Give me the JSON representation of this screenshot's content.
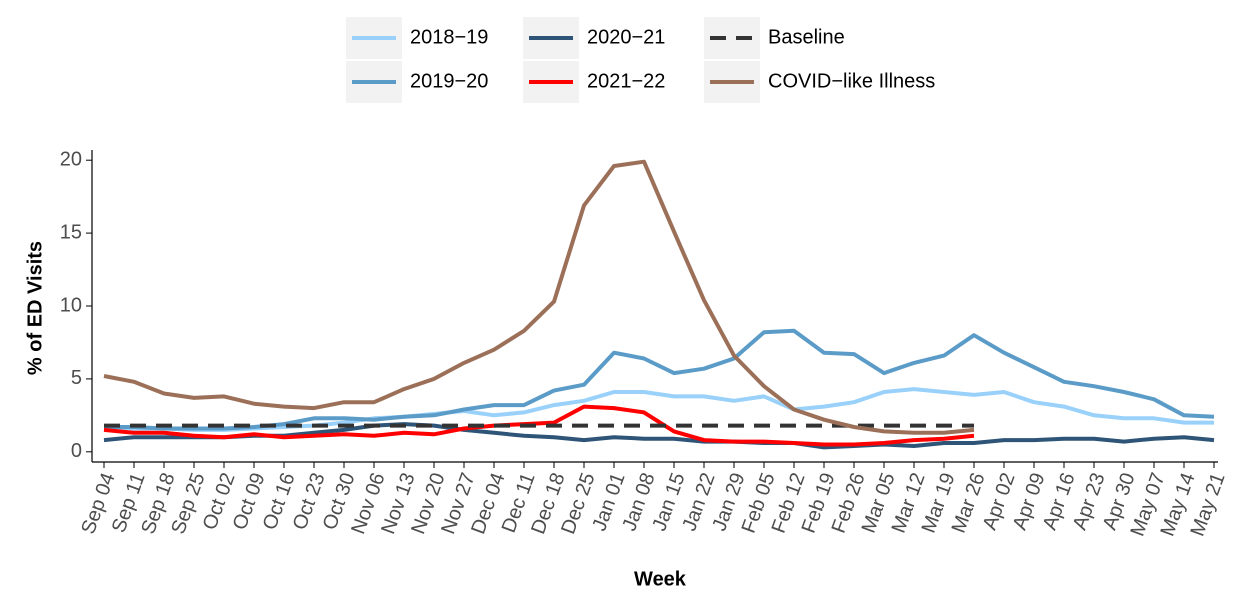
{
  "chart_data": {
    "type": "line",
    "x_label": "Week",
    "y_label": "% of ED Visits",
    "categories": [
      "Sep 04",
      "Sep 11",
      "Sep 18",
      "Sep 25",
      "Oct 02",
      "Oct 09",
      "Oct 16",
      "Oct 23",
      "Oct 30",
      "Nov 06",
      "Nov 13",
      "Nov 20",
      "Nov 27",
      "Dec 04",
      "Dec 11",
      "Dec 18",
      "Dec 25",
      "Jan 01",
      "Jan 08",
      "Jan 15",
      "Jan 22",
      "Jan 29",
      "Feb 05",
      "Feb 12",
      "Feb 19",
      "Feb 26",
      "Mar 05",
      "Mar 12",
      "Mar 19",
      "Mar 26",
      "Apr 02",
      "Apr 09",
      "Apr 16",
      "Apr 23",
      "Apr 30",
      "May 07",
      "May 14",
      "May 21"
    ],
    "ylim": [
      -0.7,
      20.7
    ],
    "yticks": [
      0,
      5,
      10,
      15,
      20
    ],
    "series": [
      {
        "name": "2018−19",
        "color": "#99d1fa",
        "values": [
          1.7,
          1.6,
          1.6,
          1.5,
          1.5,
          1.6,
          1.7,
          1.8,
          2.0,
          2.3,
          2.4,
          2.6,
          2.8,
          2.5,
          2.7,
          3.2,
          3.5,
          4.1,
          4.1,
          3.8,
          3.8,
          3.5,
          3.8,
          2.9,
          3.1,
          3.4,
          4.1,
          4.3,
          4.1,
          3.9,
          4.1,
          3.4,
          3.1,
          2.5,
          2.3,
          2.3,
          2.0,
          2.0
        ]
      },
      {
        "name": "2019−20",
        "color": "#5b9bc8",
        "values": [
          1.7,
          1.7,
          1.6,
          1.6,
          1.6,
          1.7,
          1.9,
          2.3,
          2.3,
          2.2,
          2.4,
          2.5,
          2.9,
          3.2,
          3.2,
          4.2,
          4.6,
          6.8,
          6.4,
          5.4,
          5.7,
          6.4,
          8.2,
          8.3,
          6.8,
          6.7,
          5.4,
          6.1,
          6.6,
          8.0,
          6.8,
          5.8,
          4.8,
          4.5,
          4.1,
          3.6,
          2.5,
          2.4
        ]
      },
      {
        "name": "2020−21",
        "color": "#2e5577",
        "values": [
          0.8,
          1.0,
          1.0,
          1.0,
          1.0,
          1.1,
          1.1,
          1.3,
          1.5,
          1.8,
          1.9,
          1.8,
          1.5,
          1.3,
          1.1,
          1.0,
          0.8,
          1.0,
          0.9,
          0.9,
          0.7,
          0.7,
          0.6,
          0.6,
          0.3,
          0.4,
          0.5,
          0.4,
          0.6,
          0.6,
          0.8,
          0.8,
          0.9,
          0.9,
          0.7,
          0.9,
          1.0,
          0.8
        ]
      },
      {
        "name": "2021−22",
        "color": "#ff0000",
        "values": [
          1.5,
          1.3,
          1.3,
          1.1,
          1.0,
          1.2,
          1.0,
          1.1,
          1.2,
          1.1,
          1.3,
          1.2,
          1.6,
          1.8,
          1.9,
          2.0,
          3.1,
          3.0,
          2.7,
          1.4,
          0.8,
          0.7,
          0.7,
          0.6,
          0.5,
          0.5,
          0.6,
          0.8,
          0.9,
          1.1,
          null,
          null,
          null,
          null,
          null,
          null,
          null,
          null
        ]
      },
      {
        "name": "Baseline",
        "color": "#333333",
        "dashed": true,
        "values": [
          1.8,
          1.8,
          1.8,
          1.8,
          1.8,
          1.8,
          1.8,
          1.8,
          1.8,
          1.8,
          1.8,
          1.8,
          1.8,
          1.8,
          1.8,
          1.8,
          1.8,
          1.8,
          1.8,
          1.8,
          1.8,
          1.8,
          1.8,
          1.8,
          1.8,
          1.8,
          1.8,
          1.8,
          1.8,
          1.8,
          null,
          null,
          null,
          null,
          null,
          null,
          null,
          null
        ]
      },
      {
        "name": "COVID−like Illness",
        "color": "#9c7058",
        "values": [
          5.2,
          4.8,
          4.0,
          3.7,
          3.8,
          3.3,
          3.1,
          3.0,
          3.4,
          3.4,
          4.3,
          5.0,
          6.1,
          7.0,
          8.3,
          10.3,
          16.9,
          19.6,
          19.9,
          15.1,
          10.4,
          6.6,
          4.5,
          2.9,
          2.2,
          1.7,
          1.4,
          1.3,
          1.3,
          1.5,
          null,
          null,
          null,
          null,
          null,
          null,
          null,
          null
        ]
      }
    ]
  }
}
